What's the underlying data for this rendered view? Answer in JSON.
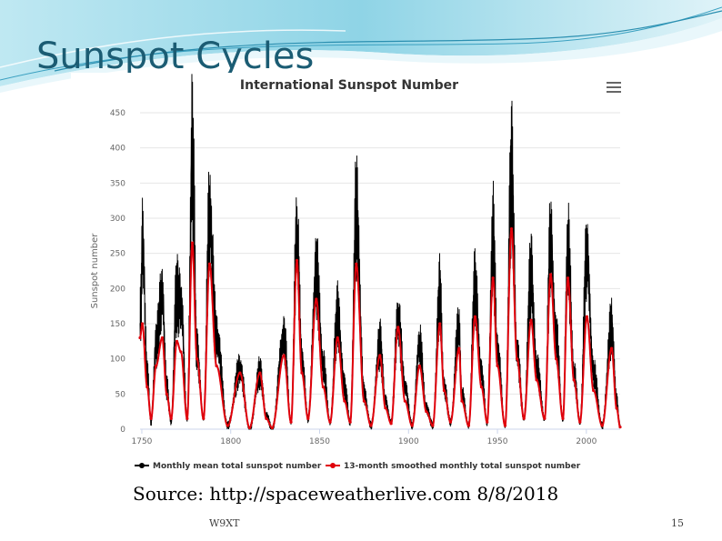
{
  "slide": {
    "title": "Sunspot Cycles",
    "source_prefix": "Source:",
    "source_link": "http://spaceweatherlive.com",
    "source_date": "8/8/2018",
    "footer_left": "W9XT",
    "page_number": "15",
    "accent_color": "#1b5c73"
  },
  "chart_data": {
    "type": "line",
    "title": "International Sunspot Number",
    "xlabel": "",
    "ylabel": "Sunspot number",
    "xlim": [
      1749,
      2019
    ],
    "ylim": [
      0,
      450
    ],
    "x_ticks": [
      1750,
      1800,
      1850,
      1900,
      1950,
      2000
    ],
    "y_ticks": [
      0,
      50,
      100,
      150,
      200,
      250,
      300,
      350,
      400,
      450
    ],
    "grid": "horizontal",
    "legend_position": "bottom",
    "cycle_minima": [
      1755.2,
      1766.5,
      1775.5,
      1784.7,
      1798.3,
      1810.6,
      1823.3,
      1833.9,
      1843.5,
      1855.9,
      1867.2,
      1878.9,
      1890.2,
      1902.0,
      1913.6,
      1923.6,
      1933.8,
      1944.2,
      1954.3,
      1964.9,
      1976.5,
      1986.8,
      1996.4,
      2008.9,
      2019.0
    ],
    "series": [
      {
        "name": "Monthly mean total sunspot number",
        "color": "#000000",
        "marker": "circle",
        "x": [
          1749.0,
          1750.5,
          1753.0,
          1755.2,
          1758.0,
          1761.5,
          1764.0,
          1766.5,
          1769.5,
          1772.0,
          1775.5,
          1778.4,
          1781.0,
          1784.7,
          1788.1,
          1792.0,
          1798.3,
          1805.2,
          1810.6,
          1816.4,
          1820.0,
          1823.3,
          1829.9,
          1833.9,
          1837.2,
          1840.0,
          1843.5,
          1848.1,
          1852.0,
          1855.9,
          1860.1,
          1864.0,
          1867.2,
          1870.6,
          1875.0,
          1878.9,
          1883.9,
          1887.0,
          1890.2,
          1894.1,
          1898.0,
          1902.0,
          1906.2,
          1910.0,
          1913.6,
          1917.6,
          1920.0,
          1923.6,
          1928.4,
          1930.0,
          1933.8,
          1937.4,
          1941.0,
          1944.2,
          1947.5,
          1950.0,
          1954.3,
          1957.9,
          1961.0,
          1964.9,
          1968.9,
          1972.0,
          1976.5,
          1979.9,
          1983.0,
          1986.8,
          1989.6,
          1993.0,
          1996.4,
          2000.3,
          2004.0,
          2008.9,
          2014.2,
          2017.0,
          2019.0
        ],
        "y": [
          150,
          265,
          80,
          10,
          120,
          190,
          60,
          10,
          190,
          180,
          15,
          400,
          110,
          15,
          300,
          130,
          5,
          85,
          0,
          80,
          20,
          0,
          130,
          10,
          275,
          100,
          15,
          220,
          90,
          10,
          160,
          60,
          10,
          305,
          50,
          5,
          120,
          40,
          10,
          155,
          60,
          5,
          120,
          30,
          5,
          190,
          60,
          10,
          145,
          50,
          5,
          200,
          80,
          10,
          270,
          110,
          5,
          360,
          110,
          15,
          220,
          90,
          15,
          265,
          130,
          15,
          255,
          80,
          10,
          245,
          80,
          5,
          145,
          40,
          5
        ]
      },
      {
        "name": "13-month smoothed monthly total sunspot number",
        "color": "#e0000a",
        "marker": "circle",
        "x": [
          1749.0,
          1750.3,
          1753.0,
          1755.2,
          1758.0,
          1761.5,
          1764.0,
          1766.5,
          1769.7,
          1772.0,
          1775.5,
          1778.4,
          1781.0,
          1784.7,
          1788.1,
          1792.0,
          1798.3,
          1805.2,
          1810.6,
          1816.4,
          1820.0,
          1823.3,
          1829.9,
          1833.9,
          1837.2,
          1840.0,
          1843.5,
          1848.1,
          1852.0,
          1855.9,
          1860.1,
          1864.0,
          1867.2,
          1870.6,
          1875.0,
          1878.9,
          1883.9,
          1887.0,
          1890.2,
          1894.1,
          1898.0,
          1902.0,
          1906.2,
          1910.0,
          1913.6,
          1917.6,
          1920.0,
          1923.6,
          1928.4,
          1930.0,
          1933.8,
          1937.4,
          1941.0,
          1944.2,
          1947.5,
          1950.0,
          1954.3,
          1957.9,
          1961.0,
          1964.9,
          1968.9,
          1972.0,
          1976.5,
          1979.9,
          1983.0,
          1986.8,
          1989.6,
          1993.0,
          1996.4,
          2000.3,
          2004.0,
          2008.9,
          2014.2,
          2017.0,
          2019.0
        ],
        "y": [
          130,
          150,
          60,
          15,
          90,
          130,
          50,
          15,
          125,
          110,
          15,
          265,
          100,
          15,
          235,
          90,
          5,
          80,
          2,
          80,
          15,
          2,
          105,
          10,
          240,
          80,
          15,
          185,
          60,
          10,
          130,
          40,
          10,
          235,
          40,
          5,
          105,
          30,
          8,
          145,
          40,
          5,
          90,
          25,
          5,
          150,
          55,
          10,
          115,
          40,
          5,
          160,
          60,
          10,
          215,
          90,
          5,
          285,
          100,
          15,
          155,
          70,
          15,
          220,
          100,
          15,
          215,
          70,
          10,
          160,
          55,
          5,
          115,
          30,
          3
        ]
      }
    ]
  }
}
